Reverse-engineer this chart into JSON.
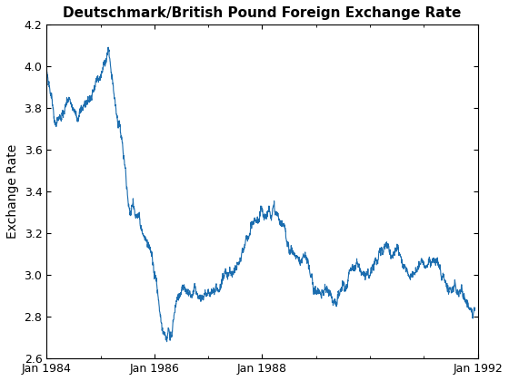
{
  "title": "Deutschmark/British Pound Foreign Exchange Rate",
  "ylabel": "Exchange Rate",
  "xlabel": "",
  "line_color": "#1b6daf",
  "line_width": 0.8,
  "ylim": [
    2.6,
    4.2
  ],
  "yticks": [
    2.6,
    2.8,
    3.0,
    3.2,
    3.4,
    3.6,
    3.8,
    4.0,
    4.2
  ],
  "xtick_labels": [
    "Jan 1984",
    "Jan 1986",
    "Jan 1988",
    "Jan 1992"
  ],
  "background_color": "#ffffff",
  "title_fontsize": 11,
  "label_fontsize": 10
}
